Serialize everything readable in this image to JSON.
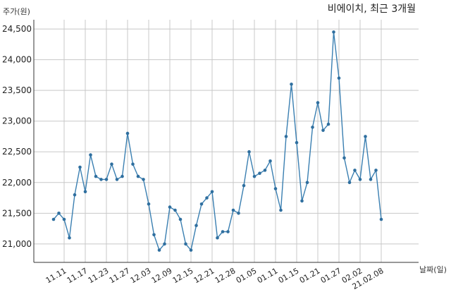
{
  "chart_data": {
    "type": "line",
    "title": "비에이치, 최근 3개월",
    "ylabel": "주가(원)",
    "xlabel": "날짜(일)",
    "ylim": [
      20700,
      24650
    ],
    "yticks": [
      21000,
      21500,
      22000,
      22500,
      23000,
      23500,
      24000,
      24500
    ],
    "ytick_labels": [
      "21,000",
      "21,500",
      "22,000",
      "22,500",
      "23,000",
      "23,500",
      "24,000",
      "24,500"
    ],
    "xtick_labels": [
      "11.11",
      "11.17",
      "11.23",
      "11.27",
      "12.03",
      "12.09",
      "12.15",
      "12.21",
      "12.28",
      "01.05",
      "01.11",
      "01.15",
      "01.21",
      "01.27",
      "02.02",
      "21.02.08"
    ],
    "xtick_indices": [
      2,
      6,
      10,
      14,
      18,
      22,
      26,
      30,
      34,
      38,
      42,
      46,
      50,
      54,
      58,
      62
    ],
    "grid": true,
    "series": [
      {
        "values": [
          21400,
          21500,
          21400,
          21100,
          21800,
          22250,
          21850,
          22450,
          22100,
          22050,
          22050,
          22300,
          22050,
          22100,
          22800,
          22300,
          22100,
          22050,
          21650,
          21150,
          20900,
          21000,
          21600,
          21550,
          21400,
          21000,
          20900,
          21300,
          21650,
          21750,
          21850,
          21100,
          21200,
          21200,
          21550,
          21500,
          21950,
          22500,
          22100,
          22150,
          22200,
          22350,
          21900,
          21550,
          22750,
          23600,
          22650,
          21700,
          22000,
          22900,
          23300,
          22850,
          22950,
          24450,
          23700,
          22400,
          22000,
          22200,
          22050,
          22750,
          22050,
          22200,
          21400
        ]
      }
    ]
  }
}
